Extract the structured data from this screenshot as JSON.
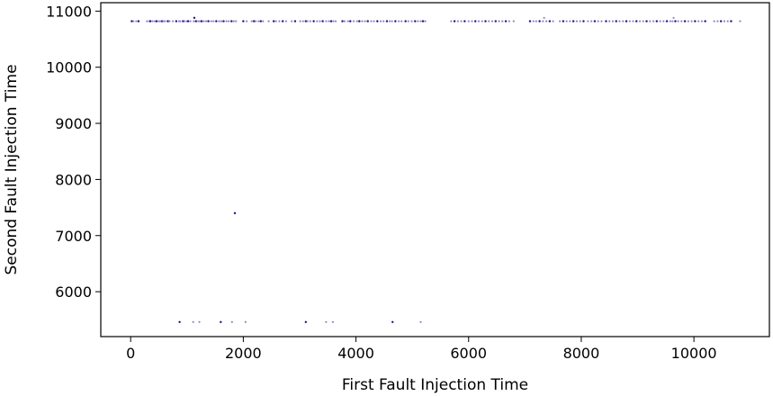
{
  "chart_data": {
    "type": "scatter",
    "xlabel": "First Fault Injection Time",
    "ylabel": "Second Fault Injection Time",
    "xlim": [
      -530,
      11340
    ],
    "ylim": [
      5200,
      11150
    ],
    "xticks": [
      0,
      2000,
      4000,
      6000,
      8000,
      10000
    ],
    "yticks": [
      6000,
      7000,
      8000,
      9000,
      10000,
      11000
    ],
    "grid": false,
    "colors": {
      "light": "#8a86c8",
      "dark": "#2a0a8c"
    },
    "series": [
      {
        "y": 10820,
        "x": [
          20,
          50,
          100,
          140,
          290,
          330,
          350,
          390,
          430,
          460,
          500,
          530,
          560,
          580,
          610,
          660,
          690,
          750,
          810,
          860,
          880,
          930,
          960,
          1000,
          1020,
          1060,
          1120,
          1160,
          1200,
          1230,
          1260,
          1300,
          1340,
          1380,
          1430,
          1470,
          1520,
          1570,
          1610,
          1650,
          1700,
          1740,
          1790,
          1830,
          1870,
          2000,
          2060,
          2150,
          2190,
          2220,
          2270,
          2310,
          2350,
          2450,
          2540,
          2580,
          2640,
          2700,
          2760,
          2860,
          2920,
          3010,
          3060,
          3110,
          3140,
          3190,
          3250,
          3310,
          3360,
          3410,
          3470,
          3520,
          3560,
          3600,
          3640,
          3760,
          3800,
          3860,
          3900,
          3960,
          4020,
          4060,
          4110,
          4160,
          4210,
          4270,
          4320,
          4380,
          4440,
          4490,
          4550,
          4600,
          4640,
          4700,
          4760,
          4810,
          4880,
          4930,
          4990,
          5050,
          5100,
          5150,
          5190,
          5230,
          5690,
          5750,
          5810,
          5870,
          5930,
          6000,
          6060,
          6120,
          6180,
          6240,
          6300,
          6360,
          6420,
          6480,
          6540,
          6600,
          6660,
          6720,
          6800,
          7090,
          7150,
          7200,
          7260,
          7320,
          7380,
          7440,
          7500,
          7620,
          7680,
          7740,
          7800,
          7860,
          7920,
          7980,
          8040,
          8120,
          8180,
          8240,
          8300,
          8360,
          8440,
          8500,
          8560,
          8620,
          8680,
          8740,
          8800,
          8860,
          8920,
          8980,
          9040,
          9100,
          9160,
          9220,
          9280,
          9340,
          9400,
          9460,
          9520,
          9580,
          9620,
          9670,
          9720,
          9780,
          9840,
          9900,
          9960,
          10020,
          10080,
          10140,
          10200,
          10360,
          10420,
          10480,
          10540,
          10600,
          10660,
          10820
        ]
      },
      {
        "y": 10880,
        "x": [
          1130,
          7340,
          9640
        ]
      },
      {
        "y": 7400,
        "x": [
          1850
        ]
      },
      {
        "y": 5460,
        "x": [
          870,
          1110,
          1220,
          1600,
          1800,
          2040,
          3110,
          3470,
          3590,
          4650,
          5150
        ]
      }
    ]
  }
}
